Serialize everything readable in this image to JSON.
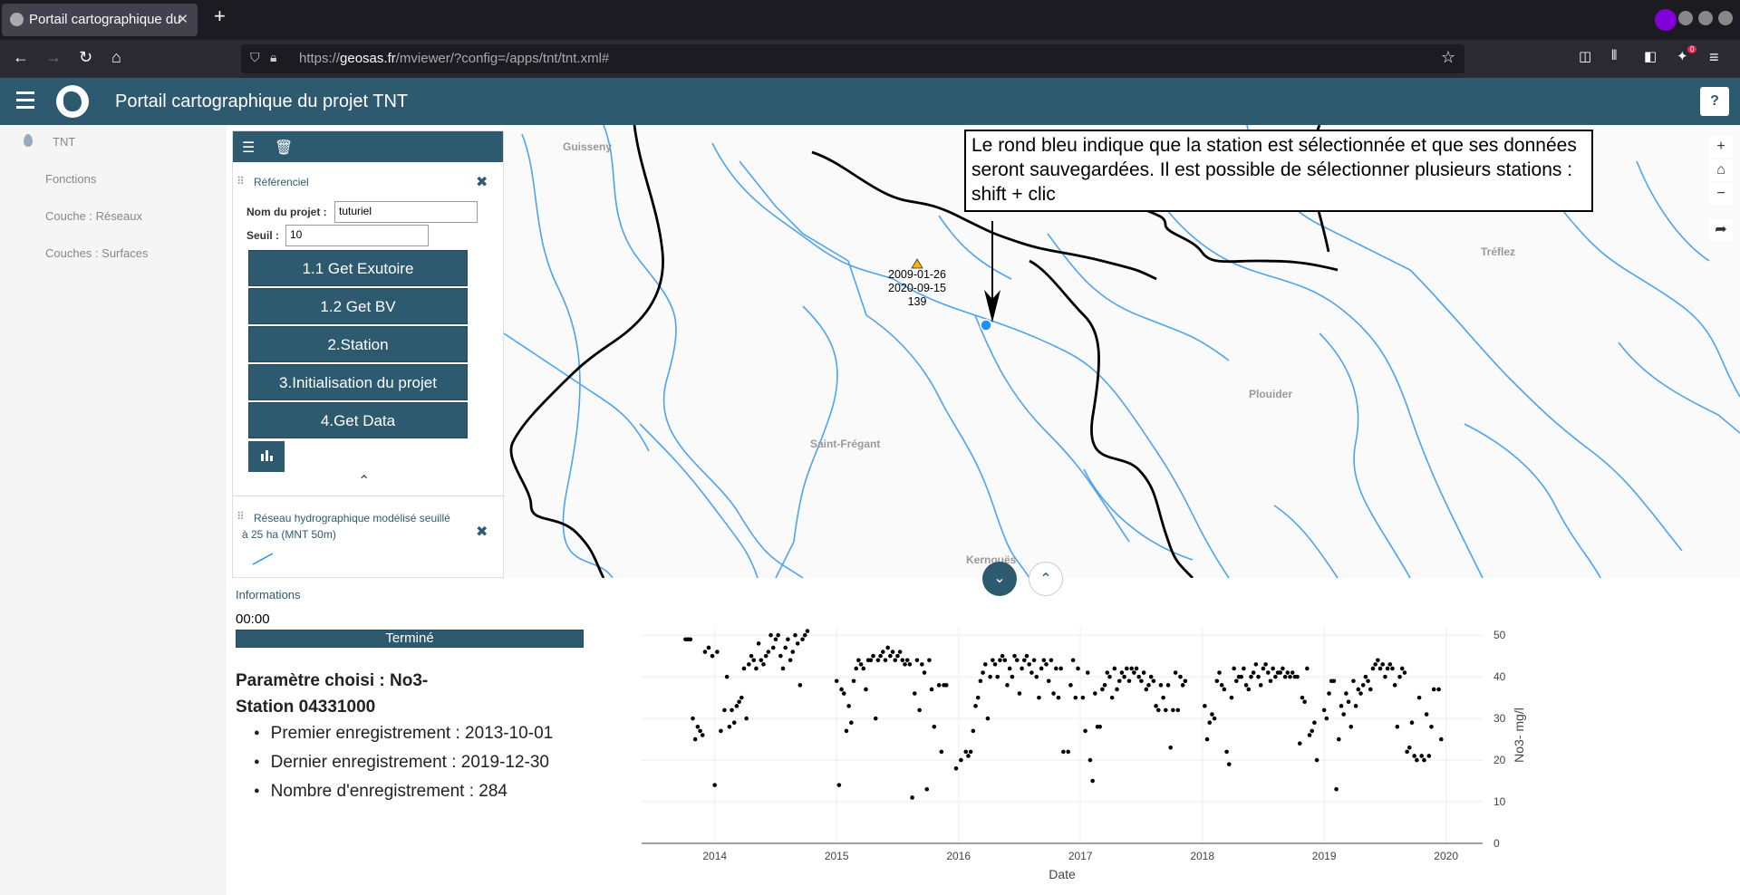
{
  "browser": {
    "tab_title": "Portail cartographique du",
    "url_prefix": "https://",
    "url_domain": "geosas.fr",
    "url_path": "/mviewer/?config=/apps/tnt/tnt.xml#",
    "new_tab": "+",
    "close_tab": "✕",
    "back_icon": "←",
    "forward_icon": "→",
    "reload_icon": "↻",
    "home_icon": "⌂",
    "star_icon": "☆",
    "menu_icon": "≡",
    "extensions_badge": "0"
  },
  "app": {
    "title": "Portail cartographique du projet TNT",
    "help_label": "?"
  },
  "leftnav": {
    "items": [
      {
        "label": "TNT"
      },
      {
        "label": "Fonctions"
      },
      {
        "label": "Couche : Réseaux"
      },
      {
        "label": "Couches : Surfaces"
      }
    ]
  },
  "panel": {
    "list_icon": "☰",
    "trash_icon": "🗑",
    "referentiel_title": "Référenciel",
    "close_icon": "✖",
    "project_label": "Nom du projet :",
    "project_value": "tuturiel",
    "seuil_label": "Seuil :",
    "seuil_value": "10",
    "buttons": [
      "1.1 Get Exutoire",
      "1.2 Get BV",
      "2.Station",
      "3.Initialisation du projet",
      "4.Get Data"
    ],
    "collapse_icon": "⌃",
    "layer2_title": "Réseau hydrographique modélisé seuillé à 25 ha (MNT 50m)"
  },
  "map": {
    "annotation": "Le rond bleu indique que la station est sélectionnée et que ses données seront sauvegardées. Il est possible de sélectionner plusieurs stations : shift + clic",
    "station_label": [
      "2009-01-26",
      "2020-09-15",
      "139"
    ],
    "places": [
      "Guisseny",
      "Tréflez",
      "Plouider",
      "Saint-Frégant",
      "Kernouës"
    ],
    "controls": [
      "+",
      "⌂",
      "−",
      "➦"
    ],
    "colors": {
      "river": "#4da3f0",
      "border": "#000000",
      "station": "#1e90ff",
      "warning": "#f5b700"
    }
  },
  "bottom": {
    "collapse_down": "⌄",
    "expand_up": "⌃",
    "info_label": "Informations",
    "timer": "00:00",
    "progress_label": "Terminé",
    "progress_percent": 100,
    "param_title": "Paramètre choisi : No3-",
    "station_title": "Station 04331000",
    "stats": [
      "Premier enregistrement : 2013-10-01",
      "Dernier enregistrement : 2019-12-30",
      "Nombre d'enregistrement : 284"
    ]
  },
  "chart_data": {
    "type": "scatter",
    "xlabel": "Date",
    "ylabel": "No3- mg/l",
    "xlim": [
      2013.4,
      2020.3
    ],
    "ylim": [
      0,
      52
    ],
    "xticks": [
      2014,
      2015,
      2016,
      2017,
      2018,
      2019,
      2020
    ],
    "yticks": [
      0,
      10,
      20,
      30,
      40,
      50
    ],
    "y_axis_side": "right",
    "grid": true,
    "series": [
      {
        "points": [
          [
            2013.76,
            49
          ],
          [
            2013.78,
            49
          ],
          [
            2013.8,
            49
          ],
          [
            2013.82,
            30
          ],
          [
            2013.84,
            25
          ],
          [
            2013.86,
            28
          ],
          [
            2013.88,
            27
          ],
          [
            2013.9,
            26
          ],
          [
            2013.92,
            46
          ],
          [
            2013.95,
            47
          ],
          [
            2013.98,
            45
          ],
          [
            2014.0,
            14
          ],
          [
            2014.02,
            46
          ],
          [
            2014.05,
            27
          ],
          [
            2014.08,
            32
          ],
          [
            2014.1,
            40
          ],
          [
            2014.12,
            28
          ],
          [
            2014.14,
            32
          ],
          [
            2014.16,
            29
          ],
          [
            2014.18,
            33
          ],
          [
            2014.2,
            34
          ],
          [
            2014.22,
            35
          ],
          [
            2014.24,
            42
          ],
          [
            2014.26,
            30
          ],
          [
            2014.28,
            43
          ],
          [
            2014.3,
            45
          ],
          [
            2014.32,
            44
          ],
          [
            2014.34,
            42
          ],
          [
            2014.36,
            48
          ],
          [
            2014.38,
            44
          ],
          [
            2014.4,
            43
          ],
          [
            2014.42,
            45
          ],
          [
            2014.44,
            46
          ],
          [
            2014.46,
            50
          ],
          [
            2014.48,
            47
          ],
          [
            2014.5,
            49
          ],
          [
            2014.52,
            50
          ],
          [
            2014.54,
            45
          ],
          [
            2014.56,
            42
          ],
          [
            2014.58,
            47
          ],
          [
            2014.6,
            49
          ],
          [
            2014.62,
            44
          ],
          [
            2014.64,
            46
          ],
          [
            2014.66,
            50
          ],
          [
            2014.68,
            48
          ],
          [
            2014.7,
            38
          ],
          [
            2014.72,
            49
          ],
          [
            2014.74,
            50
          ],
          [
            2014.76,
            51
          ],
          [
            2015.0,
            39
          ],
          [
            2015.02,
            14
          ],
          [
            2015.04,
            37
          ],
          [
            2015.06,
            36
          ],
          [
            2015.08,
            27
          ],
          [
            2015.1,
            33
          ],
          [
            2015.12,
            29
          ],
          [
            2015.14,
            39
          ],
          [
            2015.16,
            42
          ],
          [
            2015.18,
            44
          ],
          [
            2015.2,
            43
          ],
          [
            2015.22,
            42
          ],
          [
            2015.24,
            37
          ],
          [
            2015.26,
            44
          ],
          [
            2015.28,
            44
          ],
          [
            2015.3,
            45
          ],
          [
            2015.32,
            30
          ],
          [
            2015.34,
            44
          ],
          [
            2015.36,
            45
          ],
          [
            2015.38,
            46
          ],
          [
            2015.4,
            44
          ],
          [
            2015.42,
            47
          ],
          [
            2015.44,
            45
          ],
          [
            2015.46,
            46
          ],
          [
            2015.48,
            44
          ],
          [
            2015.5,
            45
          ],
          [
            2015.52,
            46
          ],
          [
            2015.54,
            44
          ],
          [
            2015.56,
            43
          ],
          [
            2015.58,
            44
          ],
          [
            2015.6,
            43
          ],
          [
            2015.62,
            11
          ],
          [
            2015.64,
            36
          ],
          [
            2015.66,
            44
          ],
          [
            2015.68,
            32
          ],
          [
            2015.7,
            43
          ],
          [
            2015.72,
            41
          ],
          [
            2015.74,
            13
          ],
          [
            2015.76,
            44
          ],
          [
            2015.78,
            37
          ],
          [
            2015.8,
            28
          ],
          [
            2015.84,
            38
          ],
          [
            2015.86,
            22
          ],
          [
            2015.88,
            38
          ],
          [
            2015.9,
            38
          ],
          [
            2015.98,
            18
          ],
          [
            2016.02,
            20
          ],
          [
            2016.06,
            22
          ],
          [
            2016.08,
            21
          ],
          [
            2016.1,
            22
          ],
          [
            2016.12,
            27
          ],
          [
            2016.14,
            33
          ],
          [
            2016.16,
            35
          ],
          [
            2016.18,
            39
          ],
          [
            2016.2,
            41
          ],
          [
            2016.22,
            43
          ],
          [
            2016.24,
            30
          ],
          [
            2016.26,
            40
          ],
          [
            2016.28,
            44
          ],
          [
            2016.3,
            43
          ],
          [
            2016.32,
            40
          ],
          [
            2016.34,
            44
          ],
          [
            2016.36,
            45
          ],
          [
            2016.38,
            44
          ],
          [
            2016.4,
            38
          ],
          [
            2016.42,
            42
          ],
          [
            2016.44,
            40
          ],
          [
            2016.46,
            45
          ],
          [
            2016.48,
            44
          ],
          [
            2016.5,
            36
          ],
          [
            2016.52,
            42
          ],
          [
            2016.54,
            44
          ],
          [
            2016.56,
            45
          ],
          [
            2016.58,
            43
          ],
          [
            2016.6,
            41
          ],
          [
            2016.62,
            44
          ],
          [
            2016.64,
            40
          ],
          [
            2016.66,
            35
          ],
          [
            2016.68,
            42
          ],
          [
            2016.7,
            44
          ],
          [
            2016.72,
            43
          ],
          [
            2016.74,
            39
          ],
          [
            2016.76,
            44
          ],
          [
            2016.78,
            36
          ],
          [
            2016.8,
            42
          ],
          [
            2016.82,
            35
          ],
          [
            2016.84,
            42
          ],
          [
            2016.86,
            22
          ],
          [
            2016.9,
            22
          ],
          [
            2016.92,
            38
          ],
          [
            2016.94,
            44
          ],
          [
            2016.96,
            35
          ],
          [
            2016.98,
            42
          ],
          [
            2017.02,
            35
          ],
          [
            2017.04,
            27
          ],
          [
            2017.06,
            41
          ],
          [
            2017.08,
            20
          ],
          [
            2017.1,
            15
          ],
          [
            2017.12,
            36
          ],
          [
            2017.14,
            28
          ],
          [
            2017.16,
            28
          ],
          [
            2017.18,
            37
          ],
          [
            2017.2,
            38
          ],
          [
            2017.22,
            41
          ],
          [
            2017.24,
            40
          ],
          [
            2017.26,
            35
          ],
          [
            2017.28,
            42
          ],
          [
            2017.3,
            37
          ],
          [
            2017.32,
            39
          ],
          [
            2017.34,
            41
          ],
          [
            2017.36,
            40
          ],
          [
            2017.38,
            42
          ],
          [
            2017.4,
            39
          ],
          [
            2017.42,
            42
          ],
          [
            2017.44,
            41
          ],
          [
            2017.46,
            42
          ],
          [
            2017.48,
            40
          ],
          [
            2017.5,
            39
          ],
          [
            2017.52,
            41
          ],
          [
            2017.54,
            37
          ],
          [
            2017.56,
            38
          ],
          [
            2017.58,
            40
          ],
          [
            2017.6,
            39
          ],
          [
            2017.62,
            33
          ],
          [
            2017.64,
            32
          ],
          [
            2017.66,
            38
          ],
          [
            2017.68,
            35
          ],
          [
            2017.7,
            32
          ],
          [
            2017.72,
            38
          ],
          [
            2017.74,
            23
          ],
          [
            2017.76,
            32
          ],
          [
            2017.78,
            41
          ],
          [
            2017.8,
            32
          ],
          [
            2017.82,
            40
          ],
          [
            2017.84,
            38
          ],
          [
            2017.86,
            39
          ],
          [
            2018.02,
            33
          ],
          [
            2018.04,
            25
          ],
          [
            2018.06,
            29
          ],
          [
            2018.08,
            31
          ],
          [
            2018.1,
            30
          ],
          [
            2018.12,
            39
          ],
          [
            2018.14,
            41
          ],
          [
            2018.16,
            38
          ],
          [
            2018.18,
            37
          ],
          [
            2018.2,
            22
          ],
          [
            2018.22,
            19
          ],
          [
            2018.24,
            35
          ],
          [
            2018.26,
            42
          ],
          [
            2018.28,
            39
          ],
          [
            2018.3,
            40
          ],
          [
            2018.32,
            40
          ],
          [
            2018.34,
            42
          ],
          [
            2018.36,
            38
          ],
          [
            2018.38,
            37
          ],
          [
            2018.4,
            40
          ],
          [
            2018.42,
            41
          ],
          [
            2018.44,
            43
          ],
          [
            2018.46,
            40
          ],
          [
            2018.48,
            38
          ],
          [
            2018.5,
            42
          ],
          [
            2018.52,
            43
          ],
          [
            2018.54,
            41
          ],
          [
            2018.56,
            39
          ],
          [
            2018.58,
            42
          ],
          [
            2018.6,
            40
          ],
          [
            2018.62,
            41
          ],
          [
            2018.64,
            41
          ],
          [
            2018.66,
            42
          ],
          [
            2018.68,
            40
          ],
          [
            2018.7,
            41
          ],
          [
            2018.72,
            40
          ],
          [
            2018.74,
            41
          ],
          [
            2018.76,
            40
          ],
          [
            2018.78,
            40
          ],
          [
            2018.8,
            24
          ],
          [
            2018.82,
            35
          ],
          [
            2018.84,
            34
          ],
          [
            2018.86,
            42
          ],
          [
            2018.88,
            26
          ],
          [
            2018.9,
            27
          ],
          [
            2018.92,
            29
          ],
          [
            2018.94,
            20
          ],
          [
            2019.0,
            32
          ],
          [
            2019.02,
            30
          ],
          [
            2019.04,
            36
          ],
          [
            2019.06,
            39
          ],
          [
            2019.08,
            39
          ],
          [
            2019.1,
            13
          ],
          [
            2019.12,
            25
          ],
          [
            2019.14,
            33
          ],
          [
            2019.16,
            31
          ],
          [
            2019.18,
            36
          ],
          [
            2019.2,
            34
          ],
          [
            2019.22,
            28
          ],
          [
            2019.24,
            39
          ],
          [
            2019.26,
            33
          ],
          [
            2019.28,
            37
          ],
          [
            2019.3,
            36
          ],
          [
            2019.32,
            38
          ],
          [
            2019.34,
            40
          ],
          [
            2019.36,
            39
          ],
          [
            2019.38,
            37
          ],
          [
            2019.4,
            42
          ],
          [
            2019.42,
            43
          ],
          [
            2019.44,
            44
          ],
          [
            2019.46,
            42
          ],
          [
            2019.48,
            43
          ],
          [
            2019.5,
            40
          ],
          [
            2019.52,
            42
          ],
          [
            2019.54,
            43
          ],
          [
            2019.56,
            42
          ],
          [
            2019.58,
            38
          ],
          [
            2019.6,
            28
          ],
          [
            2019.62,
            40
          ],
          [
            2019.64,
            42
          ],
          [
            2019.66,
            41
          ],
          [
            2019.68,
            22
          ],
          [
            2019.7,
            23
          ],
          [
            2019.72,
            29
          ],
          [
            2019.74,
            21
          ],
          [
            2019.76,
            20
          ],
          [
            2019.78,
            35
          ],
          [
            2019.8,
            21
          ],
          [
            2019.82,
            20
          ],
          [
            2019.84,
            31
          ],
          [
            2019.86,
            21
          ],
          [
            2019.88,
            28
          ],
          [
            2019.9,
            37
          ],
          [
            2019.94,
            37
          ],
          [
            2019.96,
            25
          ]
        ]
      }
    ]
  }
}
